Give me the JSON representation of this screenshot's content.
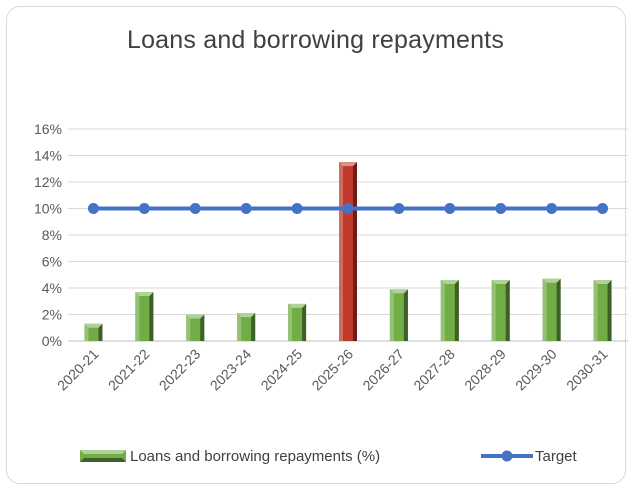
{
  "chart_data": {
    "type": "bar",
    "title": "Loans and borrowing repayments",
    "xlabel": "",
    "ylabel": "",
    "categories": [
      "2020-21",
      "2021-22",
      "2022-23",
      "2023-24",
      "2024-25",
      "2025-26",
      "2026-27",
      "2027-28",
      "2028-29",
      "2029-30",
      "2030-31"
    ],
    "ylim": [
      0,
      16
    ],
    "yticks": [
      0,
      2,
      4,
      6,
      8,
      10,
      12,
      14,
      16
    ],
    "ytick_labels": [
      "0%",
      "2%",
      "4%",
      "6%",
      "8%",
      "10%",
      "12%",
      "14%",
      "16%"
    ],
    "grid": true,
    "legend_position": "bottom",
    "series": [
      {
        "name": "Loans and borrowing repayments (%)",
        "type": "bar",
        "values": [
          1.3,
          3.7,
          2.0,
          2.1,
          2.8,
          13.5,
          3.9,
          4.6,
          4.6,
          4.7,
          4.6
        ],
        "color": "#70ad47",
        "highlight_color": "#c0392b",
        "highlight_index": 5
      },
      {
        "name": "Target",
        "type": "line",
        "values": [
          10,
          10,
          10,
          10,
          10,
          10,
          10,
          10,
          10,
          10,
          10
        ],
        "color": "#4472c4"
      }
    ]
  }
}
